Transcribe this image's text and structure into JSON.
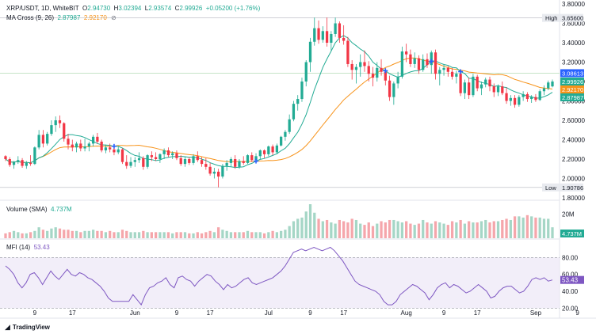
{
  "header": {
    "symbol": "XRP/USDT, 1D, WhiteBIT",
    "o_label": "O",
    "o": "2.94730",
    "h_label": "H",
    "h": "3.02394",
    "l_label": "L",
    "l": "2.93574",
    "c_label": "C",
    "c": "2.99926",
    "chg": "+0.05200 (+1.76%)"
  },
  "ma_legend": {
    "label": "MA Cross (9, 26)",
    "fast": "2.87987",
    "slow": "2.92170",
    "icon": "eye-off-icon"
  },
  "volume_legend": {
    "label": "Volume (SMA)",
    "value": "4.737M"
  },
  "mfi_legend": {
    "label": "MFI (14)",
    "value": "53.43"
  },
  "brand": {
    "icon": "tradingview-logo-icon",
    "name": "TradingView"
  },
  "colors": {
    "up": "#22ab94",
    "down": "#f23645",
    "ma_fast": "#22ab94",
    "ma_slow": "#f7931a",
    "mfi": "#7e57c2",
    "crosshair_blue": "#2962ff"
  },
  "chart_data": [
    {
      "type": "candlestick",
      "title": "XRP/USDT, 1D, WhiteBIT",
      "ylim": [
        1.8,
        3.8
      ],
      "price_ticks": [
        "1.80000",
        "2.00000",
        "2.20000",
        "2.40000",
        "2.60000",
        "2.80000",
        "3.00000",
        "3.20000",
        "3.40000",
        "3.60000",
        "3.80000"
      ],
      "x_ticks": [
        "9",
        "17",
        "Jun",
        "9",
        "17",
        "Jul",
        "9",
        "17",
        "Aug",
        "9",
        "17",
        "Sep",
        "9"
      ],
      "x_tick_index": [
        7,
        16,
        31,
        41,
        49,
        63,
        73,
        81,
        96,
        105,
        113,
        127,
        137
      ],
      "high_marker": {
        "label": "High",
        "value": "3.65600"
      },
      "low_marker": {
        "label": "Low",
        "value": "1.90786"
      },
      "price_labels": [
        {
          "value": "3.08613",
          "kind": "crosshair"
        },
        {
          "value": "2.99926",
          "kind": "last"
        },
        {
          "value": "2.92170",
          "kind": "ma_slow"
        },
        {
          "value": "2.87987",
          "kind": "ma_fast"
        }
      ],
      "candles": [
        [
          2.23,
          2.24,
          2.18,
          2.2
        ],
        [
          2.2,
          2.22,
          2.12,
          2.14
        ],
        [
          2.14,
          2.18,
          2.1,
          2.17
        ],
        [
          2.17,
          2.23,
          2.15,
          2.19
        ],
        [
          2.19,
          2.21,
          2.11,
          2.13
        ],
        [
          2.13,
          2.18,
          2.1,
          2.16
        ],
        [
          2.16,
          2.24,
          2.13,
          2.15
        ],
        [
          2.15,
          2.33,
          2.14,
          2.32
        ],
        [
          2.32,
          2.5,
          2.3,
          2.45
        ],
        [
          2.45,
          2.5,
          2.32,
          2.36
        ],
        [
          2.36,
          2.48,
          2.34,
          2.46
        ],
        [
          2.46,
          2.6,
          2.44,
          2.55
        ],
        [
          2.55,
          2.64,
          2.48,
          2.6
        ],
        [
          2.6,
          2.65,
          2.52,
          2.57
        ],
        [
          2.57,
          2.58,
          2.38,
          2.41
        ],
        [
          2.41,
          2.46,
          2.3,
          2.35
        ],
        [
          2.35,
          2.4,
          2.28,
          2.32
        ],
        [
          2.32,
          2.38,
          2.27,
          2.36
        ],
        [
          2.36,
          2.4,
          2.28,
          2.31
        ],
        [
          2.31,
          2.41,
          2.28,
          2.33
        ],
        [
          2.33,
          2.38,
          2.28,
          2.36
        ],
        [
          2.36,
          2.45,
          2.33,
          2.43
        ],
        [
          2.43,
          2.47,
          2.36,
          2.38
        ],
        [
          2.38,
          2.4,
          2.27,
          2.29
        ],
        [
          2.29,
          2.35,
          2.26,
          2.32
        ],
        [
          2.32,
          2.36,
          2.27,
          2.3
        ],
        [
          2.3,
          2.33,
          2.24,
          2.27
        ],
        [
          2.27,
          2.33,
          2.25,
          2.3
        ],
        [
          2.3,
          2.31,
          2.15,
          2.17
        ],
        [
          2.17,
          2.24,
          2.1,
          2.13
        ],
        [
          2.13,
          2.22,
          2.11,
          2.17
        ],
        [
          2.17,
          2.22,
          2.12,
          2.19
        ],
        [
          2.19,
          2.27,
          2.16,
          2.21
        ],
        [
          2.21,
          2.23,
          2.09,
          2.12
        ],
        [
          2.12,
          2.25,
          2.1,
          2.24
        ],
        [
          2.24,
          2.28,
          2.18,
          2.22
        ],
        [
          2.22,
          2.27,
          2.18,
          2.2
        ],
        [
          2.2,
          2.26,
          2.16,
          2.25
        ],
        [
          2.25,
          2.31,
          2.2,
          2.29
        ],
        [
          2.29,
          2.32,
          2.22,
          2.24
        ],
        [
          2.24,
          2.28,
          2.2,
          2.26
        ],
        [
          2.26,
          2.29,
          2.19,
          2.21
        ],
        [
          2.21,
          2.24,
          2.13,
          2.15
        ],
        [
          2.15,
          2.22,
          2.12,
          2.2
        ],
        [
          2.2,
          2.22,
          2.14,
          2.16
        ],
        [
          2.16,
          2.25,
          2.14,
          2.23
        ],
        [
          2.23,
          2.28,
          2.17,
          2.19
        ],
        [
          2.19,
          2.22,
          2.12,
          2.15
        ],
        [
          2.15,
          2.21,
          2.09,
          2.12
        ],
        [
          2.12,
          2.16,
          2.03,
          2.05
        ],
        [
          2.05,
          2.11,
          2.0,
          2.07
        ],
        [
          2.07,
          2.1,
          1.91,
          2.02
        ],
        [
          2.02,
          2.15,
          2.0,
          2.13
        ],
        [
          2.13,
          2.19,
          2.08,
          2.16
        ],
        [
          2.16,
          2.22,
          2.12,
          2.2
        ],
        [
          2.2,
          2.24,
          2.1,
          2.12
        ],
        [
          2.12,
          2.2,
          2.1,
          2.18
        ],
        [
          2.18,
          2.23,
          2.14,
          2.16
        ],
        [
          2.16,
          2.25,
          2.15,
          2.24
        ],
        [
          2.24,
          2.27,
          2.17,
          2.19
        ],
        [
          2.19,
          2.26,
          2.16,
          2.23
        ],
        [
          2.23,
          2.3,
          2.2,
          2.29
        ],
        [
          2.29,
          2.3,
          2.21,
          2.25
        ],
        [
          2.25,
          2.34,
          2.23,
          2.33
        ],
        [
          2.33,
          2.35,
          2.24,
          2.27
        ],
        [
          2.27,
          2.36,
          2.25,
          2.34
        ],
        [
          2.34,
          2.44,
          2.33,
          2.43
        ],
        [
          2.43,
          2.5,
          2.39,
          2.48
        ],
        [
          2.48,
          2.66,
          2.46,
          2.61
        ],
        [
          2.61,
          2.8,
          2.59,
          2.77
        ],
        [
          2.77,
          2.86,
          2.7,
          2.82
        ],
        [
          2.82,
          3.04,
          2.79,
          3.0
        ],
        [
          3.0,
          3.22,
          2.95,
          3.2
        ],
        [
          3.2,
          3.45,
          3.1,
          3.41
        ],
        [
          3.41,
          3.66,
          3.37,
          3.55
        ],
        [
          3.55,
          3.63,
          3.39,
          3.43
        ],
        [
          3.43,
          3.57,
          3.4,
          3.52
        ],
        [
          3.52,
          3.66,
          3.36,
          3.4
        ],
        [
          3.4,
          3.52,
          3.32,
          3.49
        ],
        [
          3.49,
          3.66,
          3.46,
          3.6
        ],
        [
          3.6,
          3.62,
          3.4,
          3.45
        ],
        [
          3.45,
          3.58,
          3.38,
          3.42
        ],
        [
          3.42,
          3.46,
          3.15,
          3.18
        ],
        [
          3.18,
          3.22,
          3.02,
          3.12
        ],
        [
          3.12,
          3.18,
          2.98,
          3.15
        ],
        [
          3.15,
          3.28,
          3.05,
          3.2
        ],
        [
          3.2,
          3.32,
          3.1,
          3.16
        ],
        [
          3.16,
          3.21,
          3.0,
          3.08
        ],
        [
          3.08,
          3.15,
          2.95,
          3.04
        ],
        [
          3.04,
          3.2,
          3.0,
          3.14
        ],
        [
          3.14,
          3.23,
          3.06,
          3.1
        ],
        [
          3.1,
          3.14,
          2.96,
          3.01
        ],
        [
          3.01,
          3.06,
          2.8,
          2.84
        ],
        [
          2.84,
          3.0,
          2.76,
          2.98
        ],
        [
          2.98,
          3.1,
          2.93,
          3.05
        ],
        [
          3.05,
          3.36,
          3.03,
          3.31
        ],
        [
          3.31,
          3.39,
          3.2,
          3.28
        ],
        [
          3.28,
          3.33,
          3.15,
          3.18
        ],
        [
          3.18,
          3.3,
          3.14,
          3.24
        ],
        [
          3.24,
          3.27,
          3.08,
          3.12
        ],
        [
          3.12,
          3.28,
          3.1,
          3.23
        ],
        [
          3.23,
          3.29,
          3.14,
          3.17
        ],
        [
          3.17,
          3.32,
          3.08,
          3.3
        ],
        [
          3.3,
          3.33,
          3.02,
          3.08
        ],
        [
          3.08,
          3.15,
          2.96,
          3.12
        ],
        [
          3.12,
          3.17,
          3.06,
          3.14
        ],
        [
          3.14,
          3.16,
          3.05,
          3.1
        ],
        [
          3.1,
          3.14,
          3.02,
          3.05
        ],
        [
          3.05,
          3.11,
          2.98,
          3.08
        ],
        [
          3.08,
          3.1,
          2.85,
          2.88
        ],
        [
          2.88,
          3.02,
          2.82,
          2.99
        ],
        [
          2.99,
          3.04,
          2.82,
          2.86
        ],
        [
          2.86,
          3.08,
          2.84,
          3.05
        ],
        [
          3.05,
          3.07,
          2.9,
          2.93
        ],
        [
          2.93,
          3.0,
          2.86,
          2.97
        ],
        [
          2.97,
          3.04,
          2.94,
          3.02
        ],
        [
          3.02,
          3.05,
          2.9,
          2.95
        ],
        [
          2.95,
          2.98,
          2.84,
          2.89
        ],
        [
          2.89,
          2.97,
          2.85,
          2.95
        ],
        [
          2.95,
          3.0,
          2.86,
          2.88
        ],
        [
          2.88,
          2.94,
          2.77,
          2.8
        ],
        [
          2.8,
          2.86,
          2.75,
          2.83
        ],
        [
          2.83,
          2.86,
          2.73,
          2.76
        ],
        [
          2.76,
          2.86,
          2.74,
          2.84
        ],
        [
          2.84,
          2.9,
          2.8,
          2.87
        ],
        [
          2.87,
          2.89,
          2.79,
          2.82
        ],
        [
          2.82,
          2.86,
          2.78,
          2.84
        ],
        [
          2.84,
          2.87,
          2.79,
          2.81
        ],
        [
          2.81,
          2.92,
          2.8,
          2.9
        ],
        [
          2.9,
          2.96,
          2.86,
          2.93
        ],
        [
          2.93,
          3.01,
          2.91,
          2.99
        ],
        [
          2.95,
          3.02,
          2.94,
          3.0
        ]
      ]
    },
    {
      "type": "bar",
      "title": "Volume (SMA)",
      "axis_labels": [
        "20M"
      ],
      "ylim": [
        0,
        28
      ],
      "values": [
        4,
        5,
        6,
        5,
        4,
        4,
        5,
        6,
        9,
        7,
        6,
        8,
        9,
        8,
        7,
        7,
        6,
        6,
        5,
        6,
        6,
        7,
        6,
        6,
        5,
        6,
        5,
        5,
        7,
        6,
        5,
        5,
        5,
        6,
        5,
        5,
        5,
        5,
        5,
        5,
        4,
        5,
        5,
        5,
        4,
        4,
        5,
        4,
        5,
        6,
        5,
        9,
        7,
        6,
        5,
        5,
        5,
        5,
        6,
        5,
        5,
        5,
        4,
        5,
        6,
        5,
        6,
        7,
        10,
        14,
        16,
        17,
        22,
        28,
        21,
        16,
        14,
        15,
        13,
        12,
        15,
        14,
        13,
        16,
        15,
        12,
        11,
        13,
        10,
        12,
        14,
        13,
        15,
        15,
        14,
        13,
        14,
        12,
        11,
        12,
        15,
        13,
        12,
        14,
        13,
        12,
        11,
        14,
        13,
        15,
        12,
        14,
        13,
        13,
        14,
        15,
        13,
        14,
        14,
        15,
        16,
        15,
        18,
        18,
        17,
        19,
        18,
        17,
        17,
        16,
        16,
        9,
        5
      ]
    },
    {
      "type": "line",
      "title": "MFI (14)",
      "ylim": [
        10,
        100
      ],
      "ticks": [
        "20.00",
        "40.00",
        "60.00",
        "80.00"
      ],
      "band": [
        20,
        80
      ],
      "values": [
        70,
        66,
        60,
        50,
        44,
        50,
        60,
        62,
        56,
        48,
        56,
        64,
        58,
        54,
        60,
        66,
        60,
        58,
        62,
        60,
        56,
        54,
        50,
        46,
        40,
        32,
        28,
        28,
        28,
        28,
        28,
        36,
        30,
        24,
        36,
        44,
        46,
        50,
        52,
        56,
        48,
        44,
        56,
        58,
        54,
        52,
        46,
        52,
        56,
        60,
        58,
        52,
        48,
        42,
        48,
        44,
        46,
        50,
        54,
        56,
        50,
        48,
        50,
        52,
        54,
        56,
        60,
        64,
        70,
        78,
        86,
        88,
        90,
        88,
        90,
        92,
        90,
        88,
        90,
        92,
        88,
        82,
        76,
        68,
        60,
        52,
        48,
        46,
        44,
        42,
        40,
        36,
        28,
        24,
        24,
        28,
        36,
        40,
        44,
        48,
        46,
        42,
        38,
        30,
        36,
        44,
        48,
        50,
        44,
        48,
        46,
        42,
        38,
        40,
        44,
        48,
        44,
        40,
        32,
        34,
        40,
        44,
        46,
        46,
        42,
        38,
        40,
        46,
        54,
        56,
        54,
        56,
        52,
        53.43
      ]
    }
  ]
}
